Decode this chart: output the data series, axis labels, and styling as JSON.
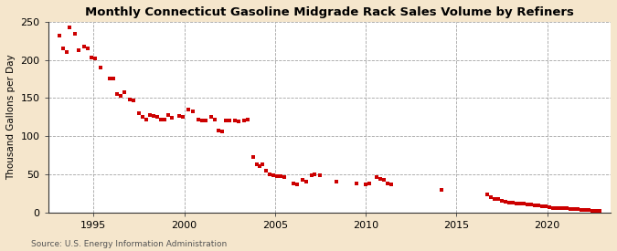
{
  "title": "Monthly Connecticut Gasoline Midgrade Rack Sales Volume by Refiners",
  "ylabel": "Thousand Gallons per Day",
  "source": "Source: U.S. Energy Information Administration",
  "fig_background_color": "#f5e6cc",
  "plot_background_color": "#ffffff",
  "marker_color": "#cc0000",
  "xlim": [
    1992.5,
    2023.5
  ],
  "ylim": [
    0,
    250
  ],
  "yticks": [
    0,
    50,
    100,
    150,
    200,
    250
  ],
  "xticks": [
    1995,
    2000,
    2005,
    2010,
    2015,
    2020
  ],
  "data_points": [
    [
      1993.1,
      232
    ],
    [
      1993.3,
      215
    ],
    [
      1993.5,
      210
    ],
    [
      1993.7,
      243
    ],
    [
      1994.0,
      234
    ],
    [
      1994.2,
      213
    ],
    [
      1994.5,
      218
    ],
    [
      1994.7,
      215
    ],
    [
      1994.9,
      203
    ],
    [
      1995.1,
      202
    ],
    [
      1995.4,
      190
    ],
    [
      1995.9,
      175
    ],
    [
      1996.1,
      175
    ],
    [
      1996.3,
      155
    ],
    [
      1996.5,
      153
    ],
    [
      1996.7,
      158
    ],
    [
      1997.0,
      148
    ],
    [
      1997.2,
      147
    ],
    [
      1997.5,
      130
    ],
    [
      1997.7,
      125
    ],
    [
      1997.9,
      122
    ],
    [
      1998.1,
      128
    ],
    [
      1998.3,
      127
    ],
    [
      1998.5,
      125
    ],
    [
      1998.7,
      122
    ],
    [
      1998.9,
      122
    ],
    [
      1999.1,
      128
    ],
    [
      1999.3,
      124
    ],
    [
      1999.7,
      127
    ],
    [
      1999.9,
      125
    ],
    [
      2000.2,
      135
    ],
    [
      2000.5,
      133
    ],
    [
      2000.8,
      122
    ],
    [
      2001.0,
      121
    ],
    [
      2001.2,
      120
    ],
    [
      2001.5,
      125
    ],
    [
      2001.7,
      122
    ],
    [
      2001.9,
      107
    ],
    [
      2002.1,
      106
    ],
    [
      2002.3,
      120
    ],
    [
      2002.5,
      120
    ],
    [
      2002.8,
      120
    ],
    [
      2003.0,
      119
    ],
    [
      2003.3,
      120
    ],
    [
      2003.5,
      122
    ],
    [
      2003.8,
      73
    ],
    [
      2004.0,
      63
    ],
    [
      2004.15,
      60
    ],
    [
      2004.3,
      63
    ],
    [
      2004.5,
      55
    ],
    [
      2004.7,
      50
    ],
    [
      2004.9,
      48
    ],
    [
      2005.1,
      47
    ],
    [
      2005.3,
      47
    ],
    [
      2005.5,
      46
    ],
    [
      2006.0,
      38
    ],
    [
      2006.2,
      37
    ],
    [
      2006.5,
      42
    ],
    [
      2006.7,
      40
    ],
    [
      2007.0,
      48
    ],
    [
      2007.2,
      50
    ],
    [
      2007.5,
      49
    ],
    [
      2008.4,
      40
    ],
    [
      2009.5,
      38
    ],
    [
      2010.0,
      36
    ],
    [
      2010.2,
      38
    ],
    [
      2010.6,
      46
    ],
    [
      2010.8,
      44
    ],
    [
      2011.0,
      43
    ],
    [
      2011.2,
      38
    ],
    [
      2011.4,
      37
    ],
    [
      2014.2,
      29
    ],
    [
      2016.7,
      23
    ],
    [
      2016.9,
      20
    ],
    [
      2017.1,
      18
    ],
    [
      2017.3,
      17
    ],
    [
      2017.5,
      15
    ],
    [
      2017.7,
      14
    ],
    [
      2017.9,
      13
    ],
    [
      2018.1,
      13
    ],
    [
      2018.3,
      12
    ],
    [
      2018.5,
      11
    ],
    [
      2018.7,
      11
    ],
    [
      2018.9,
      10
    ],
    [
      2019.1,
      10
    ],
    [
      2019.3,
      9
    ],
    [
      2019.5,
      9
    ],
    [
      2019.7,
      8
    ],
    [
      2019.9,
      8
    ],
    [
      2020.1,
      7
    ],
    [
      2020.3,
      6
    ],
    [
      2020.5,
      6
    ],
    [
      2020.7,
      5
    ],
    [
      2020.9,
      5
    ],
    [
      2021.1,
      5
    ],
    [
      2021.3,
      4
    ],
    [
      2021.5,
      4
    ],
    [
      2021.7,
      4
    ],
    [
      2021.9,
      3
    ],
    [
      2022.1,
      3
    ],
    [
      2022.3,
      3
    ],
    [
      2022.5,
      2
    ],
    [
      2022.7,
      2
    ],
    [
      2022.9,
      2
    ]
  ]
}
